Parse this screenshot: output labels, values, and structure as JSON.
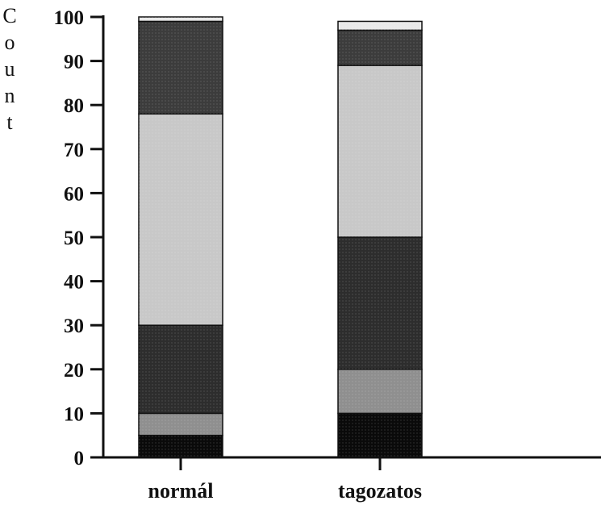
{
  "chart_data": {
    "type": "bar",
    "stacked": true,
    "ylabel": "Count",
    "ylim": [
      0,
      100
    ],
    "yticks": [
      0,
      10,
      20,
      30,
      40,
      50,
      60,
      70,
      80,
      90,
      100
    ],
    "categories": [
      "normál",
      "tagozatos"
    ],
    "series": [
      {
        "values": [
          5,
          10
        ],
        "color": "#0a0a0a"
      },
      {
        "values": [
          5,
          10
        ],
        "color": "#8f8f8f"
      },
      {
        "values": [
          20,
          30
        ],
        "color": "#2d2d2d"
      },
      {
        "values": [
          48,
          39
        ],
        "color": "#c8c8c8"
      },
      {
        "values": [
          21,
          8
        ],
        "color": "#3c3c3c"
      },
      {
        "values": [
          1,
          2
        ],
        "color": "#e8e8e8"
      }
    ],
    "legend": "none",
    "grid": false
  }
}
